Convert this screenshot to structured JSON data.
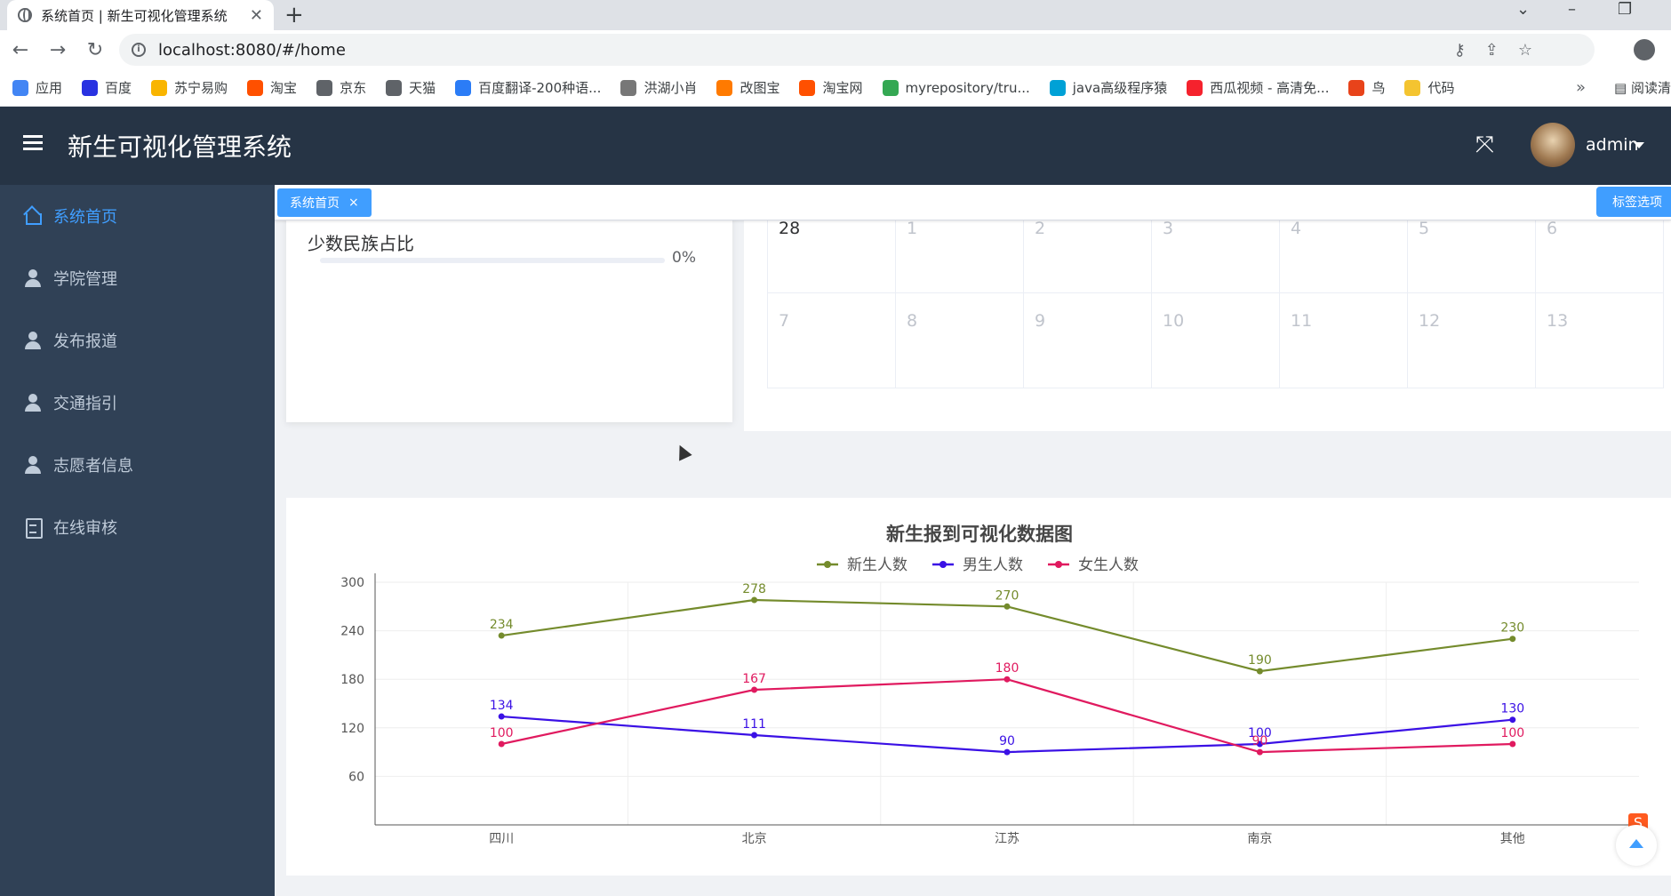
{
  "browser": {
    "tab_title": "系统首页 | 新生可视化管理系统",
    "url": "localhost:8080/#/home",
    "bookmarks": [
      {
        "label": "应用",
        "color": "#4285f4"
      },
      {
        "label": "百度",
        "color": "#2932e1"
      },
      {
        "label": "苏宁易购",
        "color": "#f9b500"
      },
      {
        "label": "淘宝",
        "color": "#ff5000"
      },
      {
        "label": "京东",
        "color": "#5f6368"
      },
      {
        "label": "天猫",
        "color": "#5f6368"
      },
      {
        "label": "百度翻译-200种语...",
        "color": "#2b7cf6"
      },
      {
        "label": "洪湖小肖",
        "color": "#777777"
      },
      {
        "label": "改图宝",
        "color": "#ff7a00"
      },
      {
        "label": "淘宝网",
        "color": "#ff5000"
      },
      {
        "label": "myrepository/tru...",
        "color": "#34a853"
      },
      {
        "label": "java高级程序猿",
        "color": "#00a1d6"
      },
      {
        "label": "西瓜视频 - 高清免...",
        "color": "#f5222d"
      },
      {
        "label": "鸟",
        "color": "#e8431a"
      },
      {
        "label": "代码",
        "color": "#f4c430"
      }
    ],
    "more": "»",
    "reading_list": "阅读清"
  },
  "header": {
    "title": "新生可视化管理系统",
    "username": "admin"
  },
  "sidebar": {
    "items": [
      {
        "label": "系统首页",
        "icon": "home-icon",
        "active": true
      },
      {
        "label": "学院管理",
        "icon": "user-icon",
        "active": false
      },
      {
        "label": "发布报道",
        "icon": "user-icon",
        "active": false
      },
      {
        "label": "交通指引",
        "icon": "user-icon",
        "active": false
      },
      {
        "label": "志愿者信息",
        "icon": "user-icon",
        "active": false
      },
      {
        "label": "在线审核",
        "icon": "document-icon",
        "active": false
      }
    ]
  },
  "tags": {
    "active_tag": "系统首页",
    "close": "×",
    "options": "标签选项"
  },
  "minority": {
    "label": "少数民族占比",
    "percent_text": "0%",
    "percent": 0
  },
  "calendar": {
    "rows": [
      [
        {
          "d": "28",
          "cur": true
        },
        {
          "d": "1"
        },
        {
          "d": "2"
        },
        {
          "d": "3"
        },
        {
          "d": "4"
        },
        {
          "d": "5"
        },
        {
          "d": "6"
        }
      ],
      [
        {
          "d": "7"
        },
        {
          "d": "8"
        },
        {
          "d": "9"
        },
        {
          "d": "10"
        },
        {
          "d": "11"
        },
        {
          "d": "12"
        },
        {
          "d": "13"
        }
      ]
    ]
  },
  "chart_data": {
    "type": "line",
    "title": "新生报到可视化数据图",
    "categories": [
      "四川",
      "北京",
      "江苏",
      "南京",
      "其他"
    ],
    "series": [
      {
        "name": "新生人数",
        "color": "#748b2c",
        "values": [
          234,
          278,
          270,
          190,
          230
        ]
      },
      {
        "name": "男生人数",
        "color": "#3a10e5",
        "values": [
          134,
          111,
          90,
          100,
          130
        ]
      },
      {
        "name": "女生人数",
        "color": "#e01a5f",
        "values": [
          100,
          167,
          180,
          90,
          100
        ]
      }
    ],
    "yticks": [
      60,
      120,
      180,
      240,
      300
    ],
    "ylim": [
      0,
      300
    ],
    "grid": true,
    "legend": "top-center"
  }
}
